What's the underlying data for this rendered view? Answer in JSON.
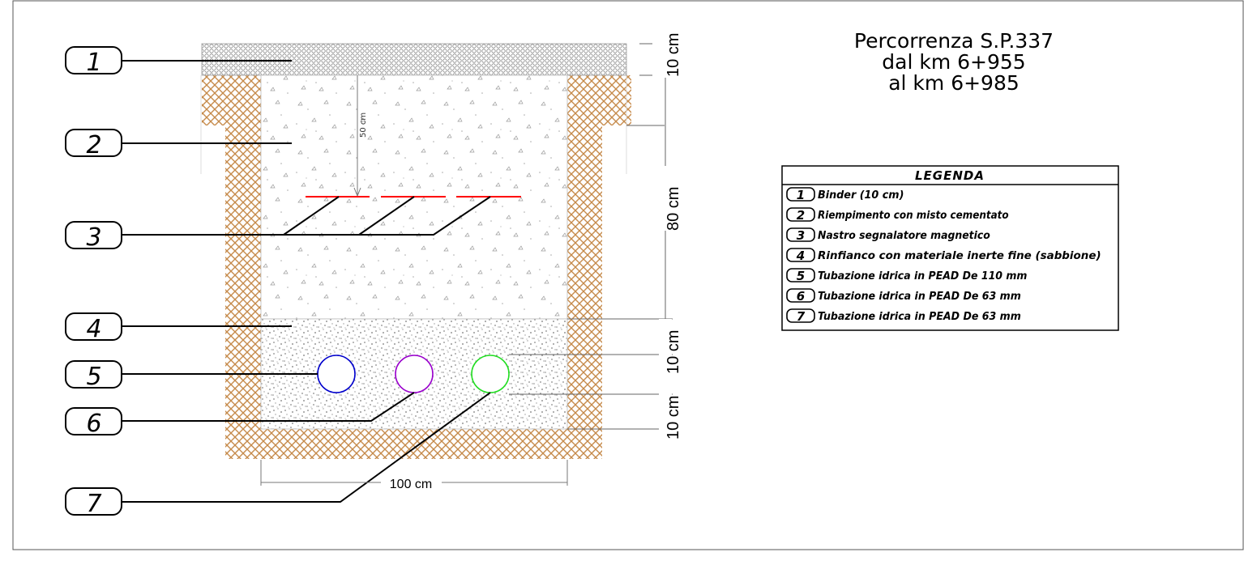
{
  "title": {
    "line1": "Percorrenza S.P.337",
    "line2": "dal km 6+955",
    "line3": "al km 6+985"
  },
  "legend": {
    "heading": "LEGENDA",
    "items": [
      {
        "num": "1",
        "text": "Binder (10 cm)"
      },
      {
        "num": "2",
        "text": "Riempimento con misto cementato"
      },
      {
        "num": "3",
        "text": "Nastro segnalatore magnetico"
      },
      {
        "num": "4",
        "text": "Rinfianco con materiale inerte fine (sabbione)"
      },
      {
        "num": "5",
        "text": "Tubazione idrica in PEAD De 110 mm"
      },
      {
        "num": "6",
        "text": "Tubazione idrica in PEAD De 63 mm"
      },
      {
        "num": "7",
        "text": "Tubazione idrica in PEAD De 63 mm"
      }
    ]
  },
  "callouts": [
    "1",
    "2",
    "3",
    "4",
    "5",
    "6",
    "7"
  ],
  "dimensions": {
    "binder": "10 cm",
    "fill": "80 cm",
    "bedding_top": "10 cm",
    "bedding_bottom": "10 cm",
    "tape_depth": "50 cm",
    "width": "100 cm"
  },
  "colors": {
    "soil_hatch": "#c58a4a",
    "tape": "#ff0000",
    "pipe_5": "#0000cc",
    "pipe_6": "#9900cc",
    "pipe_7": "#22dd22"
  }
}
